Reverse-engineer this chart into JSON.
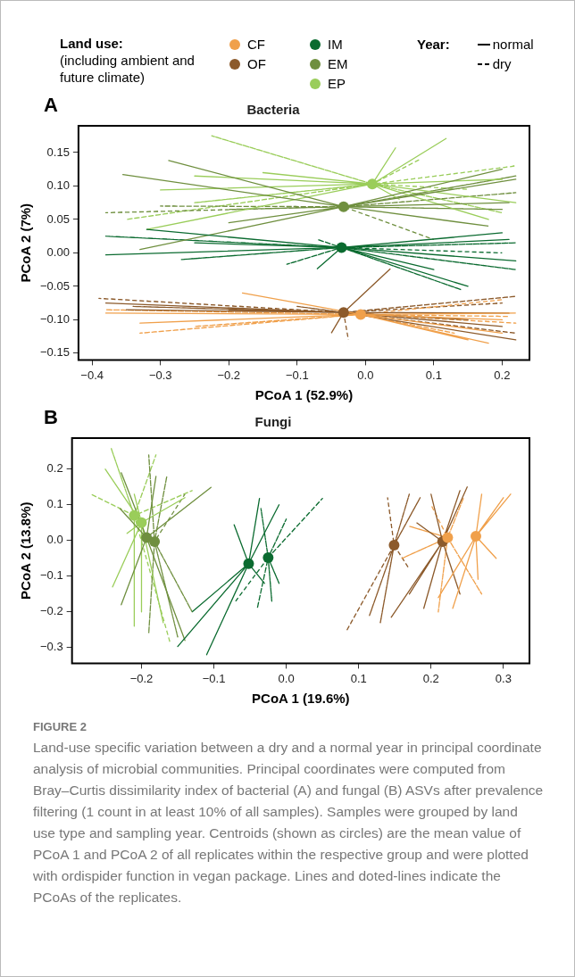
{
  "chart_data": [
    {
      "type": "line",
      "title": "Bacteria",
      "xlabel": "PCoA 1 (52.9%)",
      "ylabel": "PCoA 2 (7%)",
      "legend": "top",
      "legend_title": "Land use:",
      "annotations": [
        "A",
        "(including ambient and future climate)",
        "Year:",
        "normal",
        "dry"
      ],
      "xlim": [
        -0.42,
        0.24
      ],
      "ylim": [
        -0.16,
        0.19
      ],
      "xticks": [
        {
          "value": -0.4,
          "label": "−0.4"
        },
        {
          "value": -0.3,
          "label": "−0.3"
        },
        {
          "value": -0.2,
          "label": "−0.2"
        },
        {
          "value": -0.1,
          "label": "−0.1"
        },
        {
          "value": 0,
          "label": "0.0"
        },
        {
          "value": 0.1,
          "label": "0.1"
        },
        {
          "value": 0.2,
          "label": "0.2"
        }
      ],
      "yticks": [
        {
          "value": -0.15,
          "label": "−0.15"
        },
        {
          "value": -0.1,
          "label": "−0.10"
        },
        {
          "value": -0.05,
          "label": "−0.05"
        },
        {
          "value": 0,
          "label": "0.00"
        },
        {
          "value": 0.05,
          "label": "0.05"
        },
        {
          "value": 0.1,
          "label": "0.10"
        },
        {
          "value": 0.15,
          "label": "0.15"
        }
      ],
      "series": [
        {
          "name": "CF",
          "color": "#f0a04b",
          "line_style": "solid",
          "x": [
            -0.007,
            -0.38,
            -0.007,
            -0.33,
            -0.007,
            -0.18,
            -0.007,
            0.2,
            -0.007,
            0.18,
            -0.007,
            0.15,
            -0.007,
            0.2,
            -0.007,
            0.22
          ],
          "values": [
            -0.092,
            -0.09,
            -0.092,
            -0.105,
            -0.092,
            -0.06,
            -0.092,
            -0.1,
            -0.092,
            -0.135,
            -0.092,
            -0.13,
            -0.092,
            -0.12,
            -0.092,
            -0.09
          ]
        },
        {
          "name": "OF",
          "color": "#8c5a2b",
          "line_style": "solid",
          "x": [
            -0.032,
            -0.38,
            -0.032,
            -0.35,
            -0.032,
            -0.2,
            -0.032,
            0.036,
            -0.032,
            0.2,
            -0.032,
            0.21,
            -0.032,
            0.22,
            -0.032,
            0.15,
            -0.032,
            -0.05
          ],
          "values": [
            -0.089,
            -0.075,
            -0.089,
            -0.085,
            -0.089,
            -0.085,
            -0.089,
            -0.024,
            -0.089,
            -0.11,
            -0.089,
            -0.09,
            -0.089,
            -0.13,
            -0.089,
            -0.1,
            -0.089,
            -0.12
          ]
        },
        {
          "name": "IM",
          "color": "#0b6b30",
          "line_style": "solid",
          "x": [
            -0.035,
            -0.32,
            -0.035,
            -0.38,
            -0.035,
            -0.25,
            -0.035,
            0.2,
            -0.035,
            0.21,
            -0.035,
            0.22,
            -0.035,
            0.15,
            -0.035,
            0.1,
            -0.035,
            -0.071
          ],
          "values": [
            0.008,
            0.035,
            0.008,
            -0.003,
            0.008,
            0.015,
            0.008,
            0.03,
            0.008,
            0.02,
            0.008,
            -0.012,
            0.008,
            -0.05,
            0.008,
            -0.025,
            0.008,
            -0.024
          ]
        },
        {
          "name": "EM",
          "color": "#6f8f3f",
          "line_style": "solid",
          "x": [
            -0.032,
            -0.355,
            -0.032,
            -0.288,
            -0.032,
            -0.2,
            -0.032,
            -0.33,
            -0.032,
            0.2,
            -0.032,
            0.22,
            -0.032,
            0.21,
            -0.032,
            0.18
          ],
          "values": [
            0.069,
            0.117,
            0.069,
            0.138,
            0.069,
            0.045,
            0.069,
            0.005,
            0.069,
            0.125,
            0.069,
            0.11,
            0.069,
            0.075,
            0.069,
            0.04
          ]
        },
        {
          "name": "EP",
          "color": "#9acd5a",
          "line_style": "solid",
          "x": [
            0.01,
            -0.25,
            0.01,
            -0.3,
            0.01,
            -0.15,
            0.01,
            -0.32,
            0.01,
            0.044,
            0.01,
            0.118,
            0.01,
            0.2,
            0.01,
            0.22,
            0.01,
            0.18,
            0.01,
            0.05
          ],
          "values": [
            0.103,
            0.115,
            0.103,
            0.094,
            0.103,
            0.12,
            0.103,
            0.035,
            0.103,
            0.157,
            0.103,
            0.171,
            0.103,
            0.11,
            0.103,
            0.075,
            0.103,
            0.05,
            0.103,
            0.08
          ]
        },
        {
          "color": "#f0a04b",
          "line_style": "dashed",
          "x": [
            -0.007,
            -0.38,
            -0.007,
            -0.33,
            -0.007,
            -0.25,
            -0.007,
            0.21,
            -0.007,
            0.22,
            -0.007,
            0.13,
            -0.007,
            0.2
          ],
          "values": [
            -0.092,
            -0.085,
            -0.092,
            -0.12,
            -0.092,
            -0.11,
            -0.092,
            -0.095,
            -0.092,
            -0.105,
            -0.092,
            -0.12,
            -0.092,
            -0.07
          ]
        },
        {
          "color": "#8c5a2b",
          "line_style": "dashed",
          "x": [
            -0.032,
            -0.39,
            -0.032,
            -0.34,
            -0.032,
            -0.1,
            -0.032,
            0.22,
            -0.032,
            0.2,
            -0.032,
            0.22,
            -0.032,
            -0.025
          ],
          "values": [
            -0.089,
            -0.068,
            -0.089,
            -0.08,
            -0.089,
            -0.08,
            -0.089,
            -0.065,
            -0.089,
            -0.075,
            -0.089,
            -0.12,
            -0.089,
            -0.13
          ]
        },
        {
          "color": "#0b6b30",
          "line_style": "dashed",
          "x": [
            -0.035,
            -0.38,
            -0.035,
            -0.27,
            -0.035,
            -0.115,
            -0.035,
            -0.07,
            -0.035,
            0.22,
            -0.035,
            0.22,
            -0.035,
            0.14,
            -0.035,
            0.2
          ],
          "values": [
            0.008,
            0.025,
            0.008,
            -0.01,
            0.008,
            -0.017,
            0.008,
            0.02,
            0.008,
            0.015,
            0.008,
            -0.025,
            0.008,
            -0.055,
            0.008,
            0
          ]
        },
        {
          "color": "#6f8f3f",
          "line_style": "dashed",
          "x": [
            -0.032,
            -0.38,
            -0.032,
            -0.3,
            -0.032,
            -0.2,
            -0.032,
            0.22,
            -0.032,
            0.22,
            -0.032,
            0.2,
            -0.032,
            0.1
          ],
          "values": [
            0.069,
            0.06,
            0.069,
            0.07,
            0.069,
            0.065,
            0.069,
            0.115,
            0.069,
            0.09,
            0.069,
            0.065,
            0.069,
            0.02
          ]
        },
        {
          "color": "#9acd5a",
          "line_style": "dashed",
          "x": [
            0.01,
            -0.225,
            0.01,
            -0.35,
            0.01,
            -0.25,
            0.01,
            0.22,
            0.01,
            0.2,
            0.01,
            0.08,
            0.01,
            0.15
          ],
          "values": [
            0.103,
            0.175,
            0.103,
            0.05,
            0.103,
            0.075,
            0.103,
            0.13,
            0.103,
            0.06,
            0.103,
            0.14,
            0.103,
            0.095
          ]
        },
        {
          "type": "scatter",
          "marker": "circle",
          "colors": [
            "#f0a04b",
            "#8c5a2b",
            "#0b6b30",
            "#6f8f3f",
            "#9acd5a"
          ],
          "x": [
            -0.007,
            -0.032,
            -0.035,
            -0.032,
            0.01
          ],
          "values": [
            -0.092,
            -0.089,
            0.008,
            0.069,
            0.103
          ]
        }
      ]
    },
    {
      "type": "line",
      "title": "Fungi",
      "xlabel": "PCoA 1 (19.6%)",
      "ylabel": "PCoA 2 (13.8%)",
      "annotations": [
        "B",
        "FIGURE 2",
        "Land-use specific variation between a dry and a normal year in principal coordinate analysis of microbial communities. Principal coordinates were computed from Bray–Curtis dissimilarity index of bacterial (A) and fungal (B) ASVs after prevalence filtering (1 count in at least 10% of all samples). Samples were grouped by land use type and sampling year. Centroids (shown as circles) are the mean value of PCoA 1 and PCoA 2 of all replicates within the respective group and were plotted with ordispider function in vegan package. Lines and doted-lines indicate the PCoAs of the replicates."
      ],
      "xlim": [
        -0.296,
        0.336
      ],
      "ylim": [
        -0.344,
        0.287
      ],
      "xticks": [
        {
          "value": -0.2,
          "label": "−0.2"
        },
        {
          "value": -0.1,
          "label": "−0.1"
        },
        {
          "value": 0,
          "label": "0.0"
        },
        {
          "value": 0.1,
          "label": "0.1"
        },
        {
          "value": 0.2,
          "label": "0.2"
        },
        {
          "value": 0.3,
          "label": "0.3"
        }
      ],
      "yticks": [
        {
          "value": -0.3,
          "label": "−0.3"
        },
        {
          "value": -0.2,
          "label": "−0.2"
        },
        {
          "value": -0.1,
          "label": "−0.1"
        },
        {
          "value": 0,
          "label": "0.0"
        },
        {
          "value": 0.1,
          "label": "0.1"
        },
        {
          "value": 0.2,
          "label": "0.2"
        }
      ],
      "series": [
        {
          "color": "#f0a04b",
          "line_style": "solid",
          "x": [
            0.262,
            0.31,
            0.262,
            0.29,
            0.262,
            0.21,
            0.262,
            0.23,
            0.262,
            0.3,
            0.262,
            0.27,
            0.262,
            0.265
          ],
          "values": [
            0.012,
            0.13,
            0.012,
            -0.05,
            0.012,
            -0.16,
            0.012,
            -0.19,
            0.012,
            0.12,
            0.012,
            0.13,
            0.012,
            -0.11
          ]
        },
        {
          "color": "#8c5a2b",
          "line_style": "solid",
          "x": [
            0.216,
            0.145,
            0.216,
            0.2,
            0.216,
            0.25,
            0.216,
            0.24,
            0.216,
            0.24,
            0.216,
            0.17,
            0.216,
            0.19,
            0.216,
            0.18
          ],
          "values": [
            -0.003,
            -0.215,
            -0.003,
            0.13,
            -0.003,
            0.15,
            -0.003,
            0.14,
            -0.003,
            -0.15,
            -0.003,
            -0.15,
            -0.003,
            -0.19,
            -0.003,
            0.05
          ]
        },
        {
          "color": "#0b6b30",
          "line_style": "solid",
          "x": [
            -0.052,
            -0.15,
            -0.052,
            -0.11,
            -0.052,
            -0.072,
            -0.052,
            -0.037,
            -0.052,
            -0.01,
            -0.052,
            -0.03,
            -0.052,
            -0.13
          ],
          "values": [
            -0.065,
            -0.297,
            -0.065,
            -0.32,
            -0.065,
            0.044,
            -0.065,
            0.118,
            -0.065,
            0.1,
            -0.065,
            -0.12,
            -0.065,
            -0.2
          ]
        },
        {
          "color": "#6f8f3f",
          "line_style": "solid",
          "x": [
            -0.193,
            -0.228,
            -0.193,
            -0.228,
            -0.193,
            -0.104,
            -0.193,
            -0.14,
            -0.193,
            -0.18,
            -0.193,
            -0.23
          ],
          "values": [
            0.008,
            0.19,
            0.008,
            -0.18,
            0.008,
            0.149,
            0.008,
            -0.28,
            0.008,
            0.18,
            0.008,
            0.09
          ]
        },
        {
          "color": "#9acd5a",
          "line_style": "solid",
          "x": [
            -0.2,
            -0.25,
            -0.2,
            -0.24,
            -0.2,
            -0.22,
            -0.2,
            -0.14,
            -0.2,
            -0.17,
            -0.2,
            -0.21,
            -0.2,
            -0.2
          ],
          "values": [
            0.05,
            0.2,
            0.05,
            -0.13,
            0.05,
            0.02,
            0.05,
            0.12,
            0.05,
            -0.23,
            0.05,
            0.13,
            0.05,
            -0.2
          ]
        },
        {
          "color": "#f0a04b",
          "line_style": "dashed",
          "x": [
            0.223,
            0.16,
            0.223,
            0.17,
            0.223,
            0.27,
            0.223,
            0.21,
            0.223,
            0.245,
            0.223,
            0.2
          ],
          "values": [
            0.008,
            -0.05,
            0.008,
            0.04,
            0.008,
            -0.15,
            0.008,
            -0.2,
            0.008,
            0.12,
            0.008,
            0.1
          ]
        },
        {
          "color": "#8c5a2b",
          "line_style": "dashed",
          "x": [
            0.149,
            0.083,
            0.149,
            0.13,
            0.149,
            0.14,
            0.149,
            0.17,
            0.149,
            0.185,
            0.149,
            0.115,
            0.149,
            0.17
          ],
          "values": [
            -0.013,
            -0.254,
            -0.013,
            -0.23,
            -0.013,
            0.12,
            -0.013,
            0.13,
            -0.013,
            0.12,
            -0.013,
            -0.21,
            -0.013,
            -0.08
          ]
        },
        {
          "color": "#0b6b30",
          "line_style": "dashed",
          "x": [
            -0.025,
            0.05,
            -0.025,
            -0.035,
            -0.025,
            -0.04,
            -0.025,
            -0.02,
            -0.025,
            0,
            -0.025,
            -0.01,
            -0.025,
            -0.07
          ],
          "values": [
            -0.048,
            0.118,
            -0.048,
            0.09,
            -0.048,
            -0.19,
            -0.048,
            -0.17,
            -0.048,
            0.06,
            -0.048,
            -0.12,
            -0.048,
            -0.17
          ]
        },
        {
          "color": "#6f8f3f",
          "line_style": "dashed",
          "x": [
            -0.182,
            -0.19,
            -0.182,
            -0.165,
            -0.182,
            -0.13,
            -0.182,
            -0.15,
            -0.182,
            -0.19,
            -0.182,
            -0.14
          ],
          "values": [
            -0.003,
            0.24,
            -0.003,
            0.18,
            -0.003,
            -0.2,
            -0.003,
            -0.27,
            -0.003,
            -0.26,
            -0.003,
            0.13
          ]
        },
        {
          "color": "#9acd5a",
          "line_style": "dashed",
          "x": [
            -0.21,
            -0.242,
            -0.21,
            -0.27,
            -0.21,
            -0.21,
            -0.21,
            -0.13,
            -0.21,
            -0.18,
            -0.21,
            -0.16
          ],
          "values": [
            0.07,
            0.259,
            0.07,
            0.13,
            0.07,
            -0.24,
            0.07,
            0.14,
            0.07,
            0.24,
            0.07,
            -0.29
          ]
        },
        {
          "type": "scatter",
          "marker": "circle",
          "colors": [
            "#f0a04b",
            "#8c5a2b",
            "#0b6b30",
            "#6f8f3f",
            "#9acd5a",
            "#f0a04b",
            "#8c5a2b",
            "#0b6b30",
            "#6f8f3f",
            "#9acd5a"
          ],
          "x": [
            0.262,
            0.216,
            -0.052,
            -0.193,
            -0.2,
            0.223,
            0.149,
            -0.025,
            -0.182,
            -0.21
          ],
          "values": [
            0.012,
            -0.003,
            -0.065,
            0.008,
            0.05,
            0.008,
            -0.013,
            -0.048,
            -0.003,
            0.07
          ]
        }
      ]
    }
  ]
}
